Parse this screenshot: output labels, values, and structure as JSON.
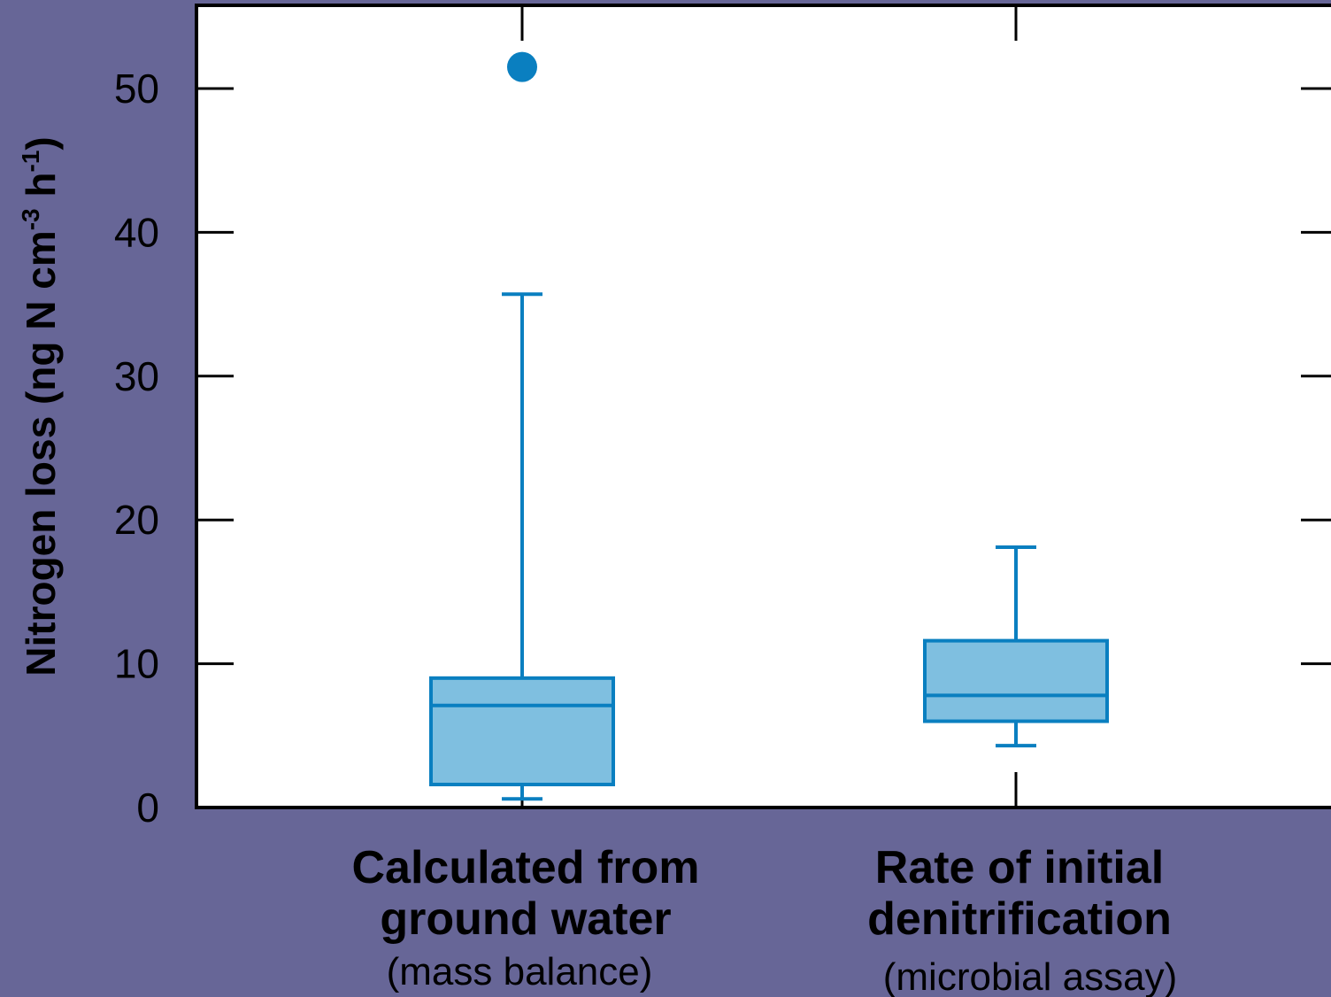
{
  "chart_data": {
    "type": "box",
    "ylabel_prefix": "Nitrogen loss (ng N cm",
    "ylabel_sup1": "-3",
    "ylabel_mid": " h",
    "ylabel_sup2": "-1",
    "ylabel_suffix": ")",
    "ylim": [
      0,
      55
    ],
    "yticks": [
      0,
      10,
      20,
      30,
      40,
      50
    ],
    "ytick_labels": [
      "0",
      "10",
      "20",
      "30",
      "40",
      "50"
    ],
    "grid": false,
    "colors": {
      "box_fill": "#7fbfe0",
      "box_stroke": "#0a7fc0",
      "outlier": "#0a7fc0",
      "background": "#676697",
      "plot_bg": "#ffffff"
    },
    "categories": [
      {
        "line1": "Calculated from",
        "line2": "ground water",
        "sub": "(mass balance)",
        "whisker_low": 0.6,
        "q1": 1.6,
        "median": 7.1,
        "q3": 9.0,
        "whisker_high": 35.7,
        "outliers": [
          51.5
        ]
      },
      {
        "line1": "Rate of initial",
        "line2": "denitrification",
        "sub": "(microbial assay)",
        "whisker_low": 4.3,
        "q1": 6.0,
        "median": 7.8,
        "q3": 11.6,
        "whisker_high": 18.1,
        "outliers": []
      }
    ]
  }
}
